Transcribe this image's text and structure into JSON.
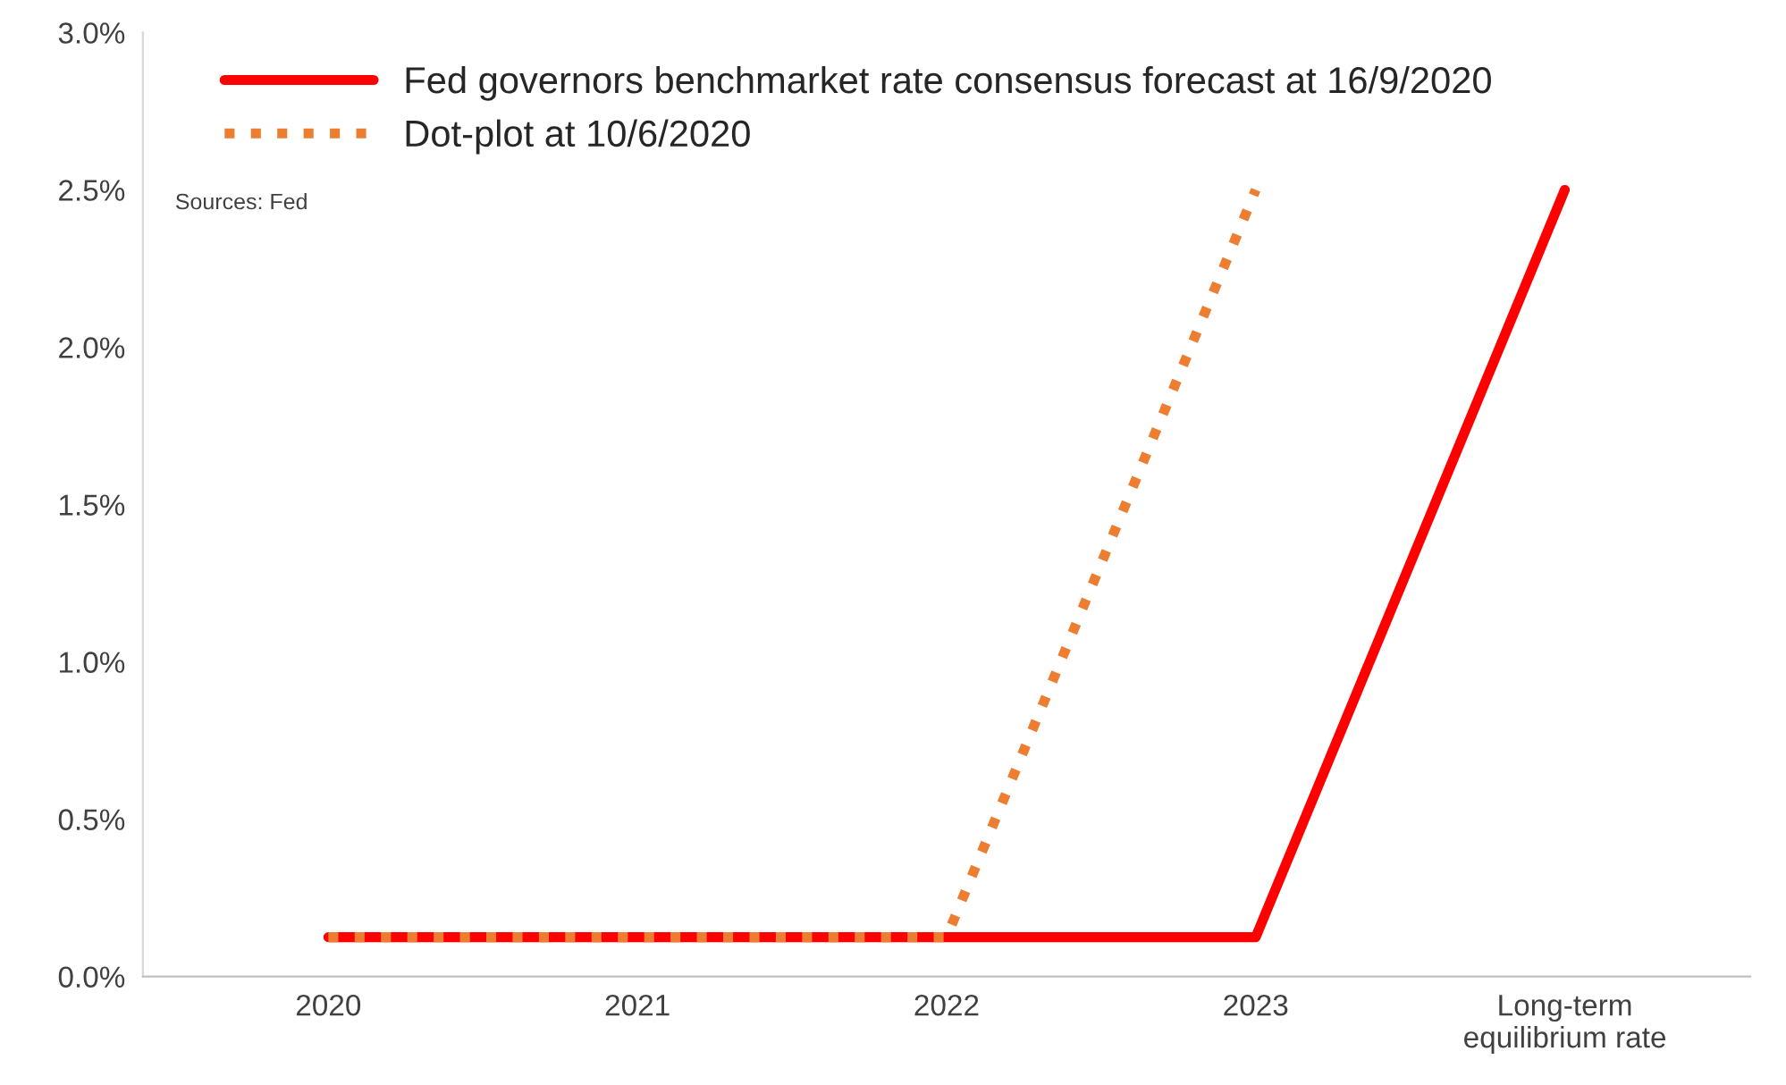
{
  "chart_data": {
    "type": "line",
    "categories": [
      "2020",
      "2021",
      "2022",
      "2023",
      "Long-term\nequilibrium rate"
    ],
    "series": [
      {
        "name": "Fed governors benchmarket rate consensus forecast at 16/9/2020",
        "color": "#ff0000",
        "line_style": "solid",
        "values": [
          0.125,
          0.125,
          0.125,
          0.125,
          2.5
        ]
      },
      {
        "name": "Dot-plot at 10/6/2020",
        "color": "#ed7d31",
        "line_style": "dotted",
        "values": [
          0.125,
          0.125,
          0.125,
          2.5,
          null
        ]
      }
    ],
    "ylim": [
      0,
      3.0
    ],
    "yticks": [
      {
        "value": 0,
        "label": "0.0%"
      },
      {
        "value": 0.5,
        "label": "0.5%"
      },
      {
        "value": 1.0,
        "label": "1.0%"
      },
      {
        "value": 1.5,
        "label": "1.5%"
      },
      {
        "value": 2.0,
        "label": "2.0%"
      },
      {
        "value": 2.5,
        "label": "2.5%"
      },
      {
        "value": 3.0,
        "label": "3.0%"
      }
    ],
    "annotations": [
      "Sources: Fed"
    ],
    "legend": "top left",
    "grid": false
  }
}
